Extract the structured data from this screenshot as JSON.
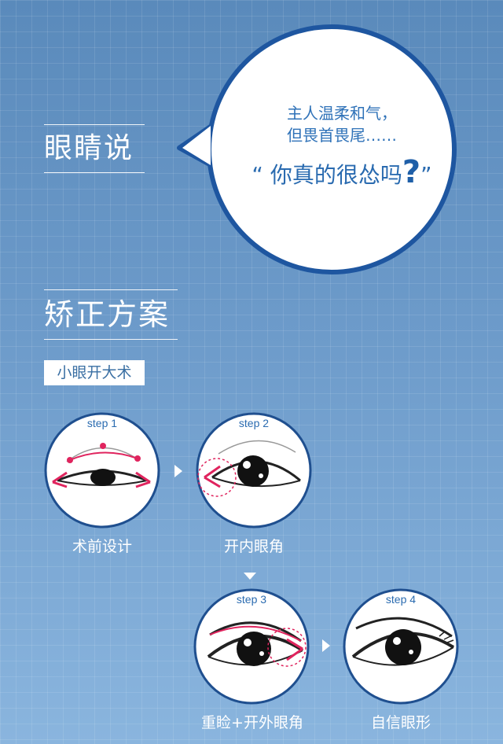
{
  "section1": {
    "title": "眼睛说"
  },
  "bubble": {
    "line1": "主人温柔和气，",
    "line2": "但畏首畏尾……",
    "line3_open": "“ 你真的很怂吗",
    "line3_q": "?",
    "line3_close": "”"
  },
  "section2": {
    "title": "矫正方案",
    "tag": "小眼开大术"
  },
  "steps": [
    {
      "step": "step 1",
      "label": "术前设计"
    },
    {
      "step": "step 2",
      "label": "开内眼角"
    },
    {
      "step": "step 3",
      "label": "重睑+开外眼角"
    },
    {
      "step": "step 4",
      "label": "自信眼形"
    }
  ],
  "colors": {
    "accent": "#e0245e",
    "circle_border": "#1f4f8f",
    "bubble_border": "#1e56a0"
  }
}
